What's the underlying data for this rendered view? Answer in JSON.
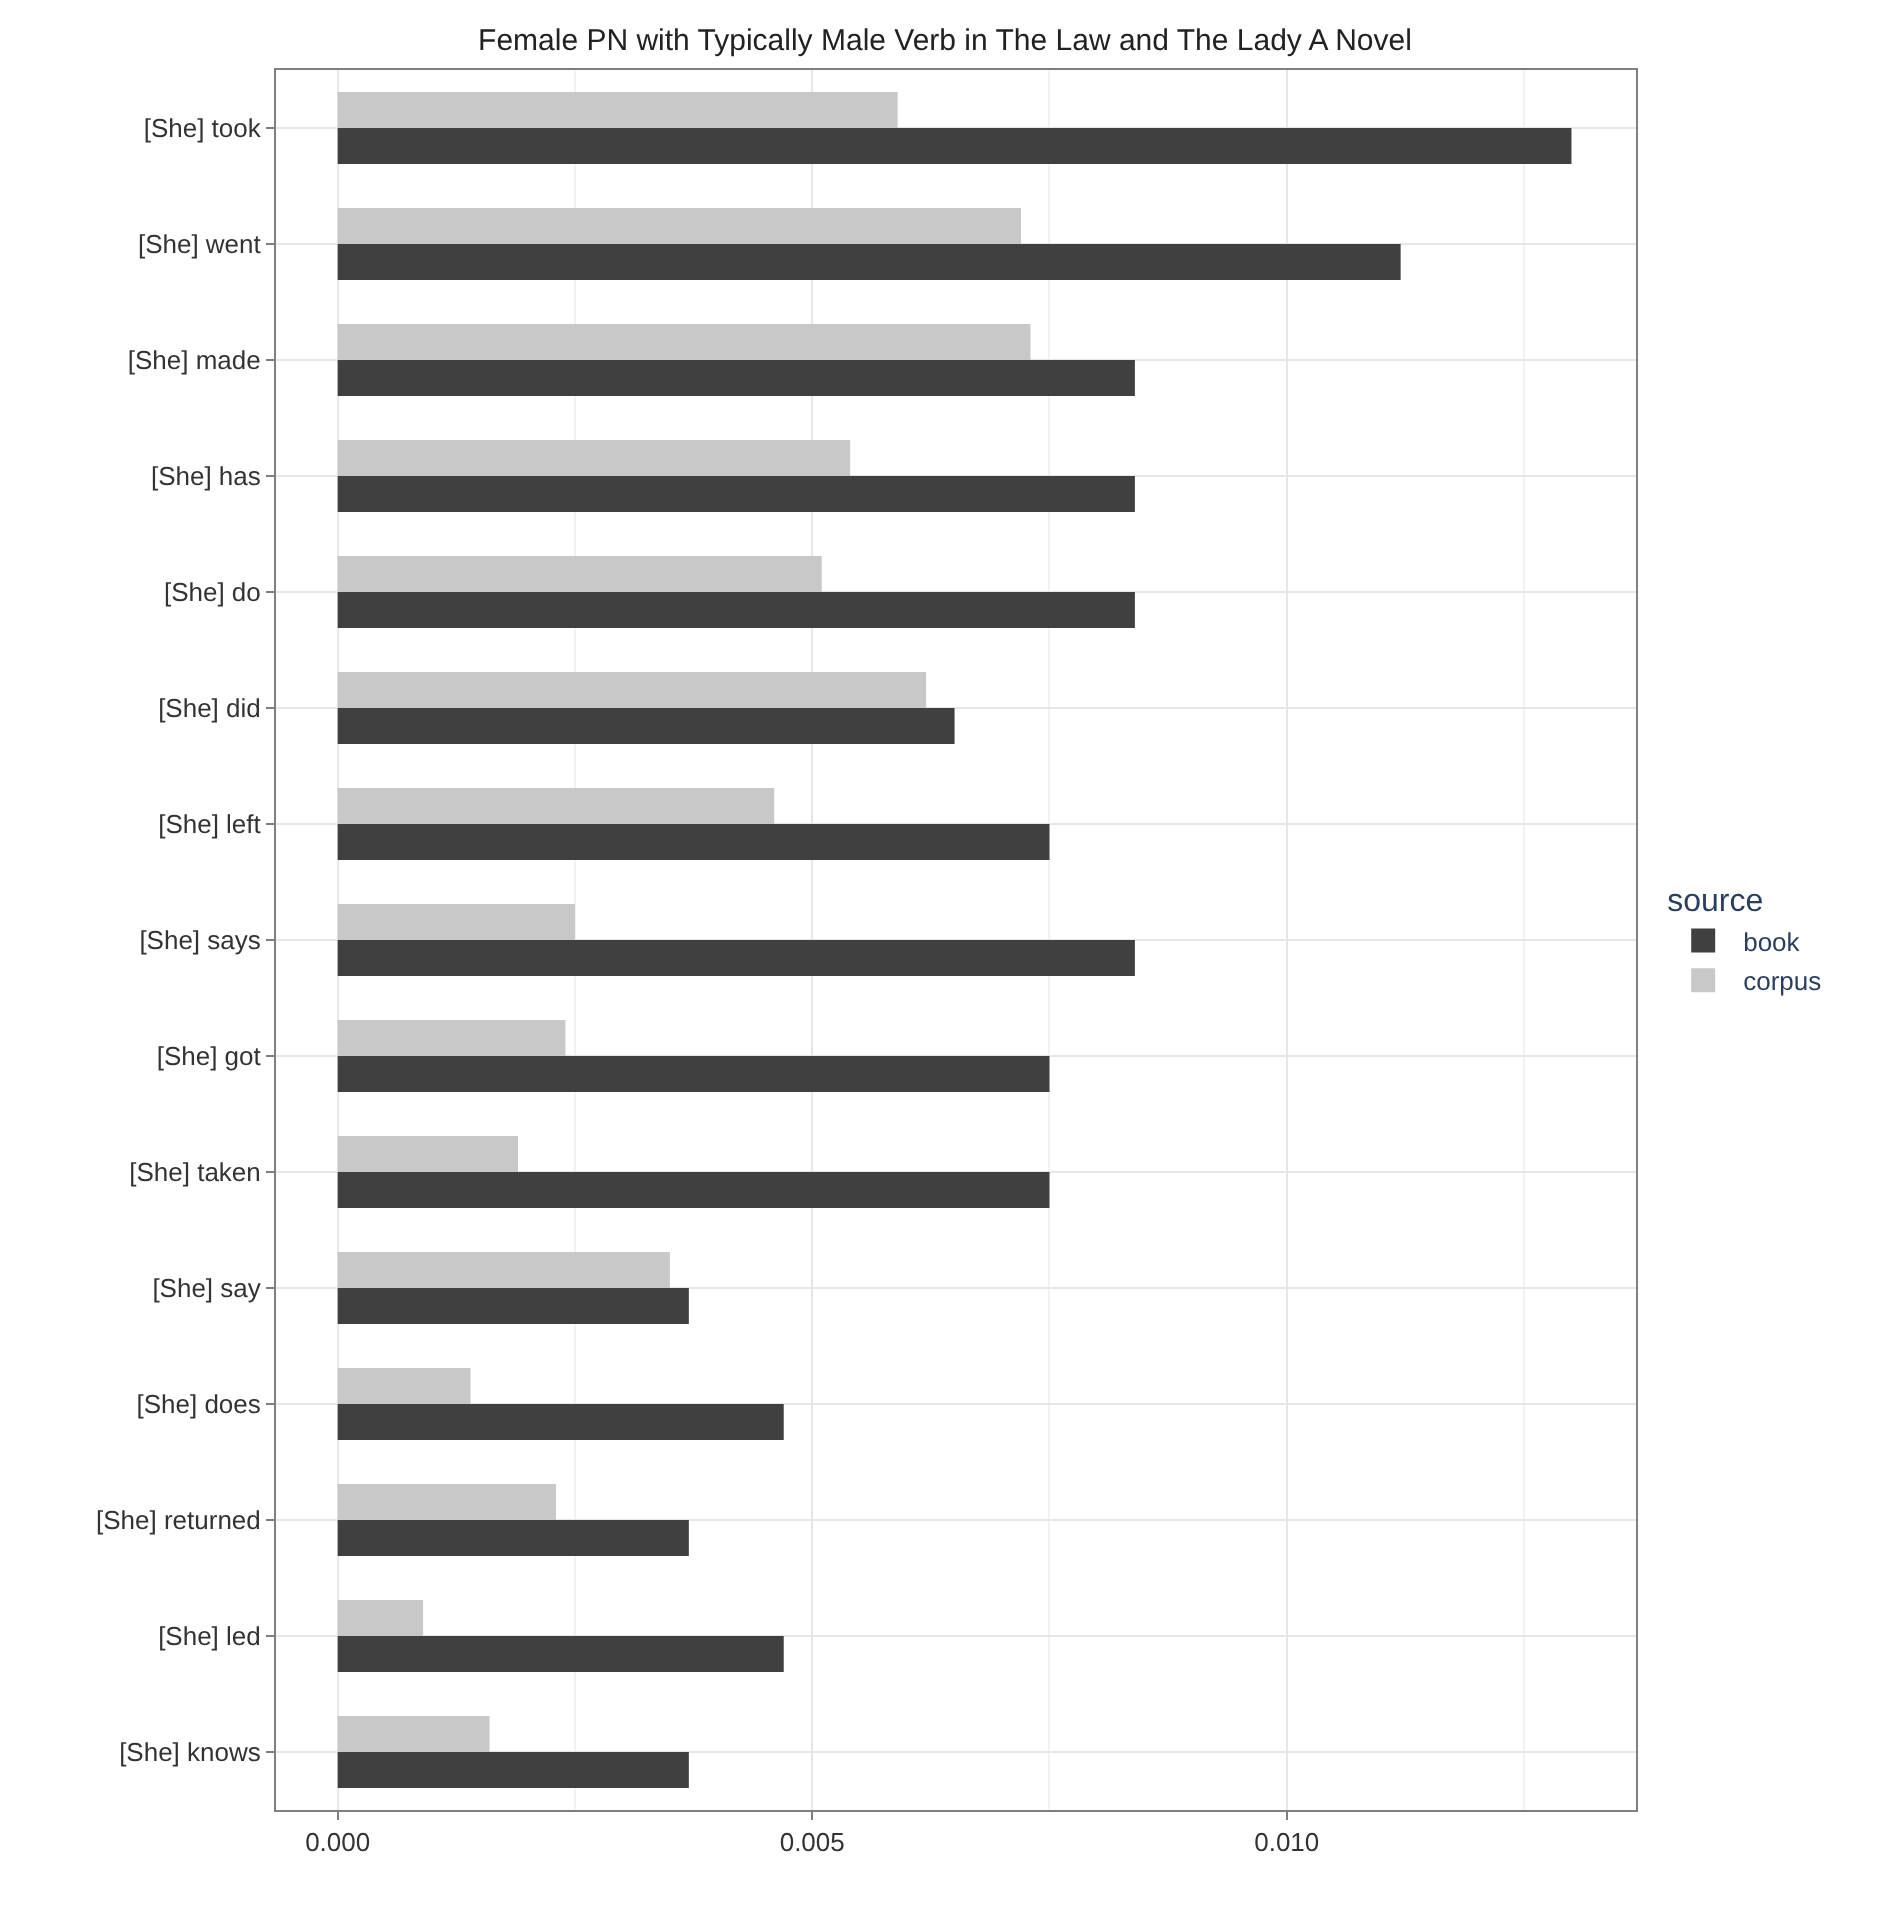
{
  "chart_data": {
    "type": "bar",
    "orientation": "horizontal",
    "title": "Female PN with Typically Male Verb in The Law and The Lady A Novel",
    "categories": [
      "[She] took",
      "[She] went",
      "[She] made",
      "[She] has",
      "[She] do",
      "[She] did",
      "[She] left",
      "[She] says",
      "[She] got",
      "[She] taken",
      "[She] say",
      "[She] does",
      "[She] returned",
      "[She] led",
      "[She] knows"
    ],
    "series": [
      {
        "name": "book",
        "color": "#404040",
        "values": [
          0.013,
          0.0112,
          0.0084,
          0.0084,
          0.0084,
          0.0065,
          0.0075,
          0.0084,
          0.0075,
          0.0075,
          0.0037,
          0.0047,
          0.0037,
          0.0047,
          0.0037
        ]
      },
      {
        "name": "corpus",
        "color": "#c8c8c8",
        "values": [
          0.0059,
          0.0072,
          0.0073,
          0.0054,
          0.0051,
          0.0062,
          0.0046,
          0.0025,
          0.0024,
          0.0019,
          0.0035,
          0.0014,
          0.0023,
          0.0009,
          0.0016
        ]
      }
    ],
    "xlim": [
      -0.00065,
      0.01368
    ],
    "xticks": [
      {
        "value": 0,
        "label": "0.000"
      },
      {
        "value": 0.005,
        "label": "0.005"
      },
      {
        "value": 0.01,
        "label": "0.010"
      }
    ],
    "grid": true,
    "legend": "right",
    "legend_title": "source"
  }
}
